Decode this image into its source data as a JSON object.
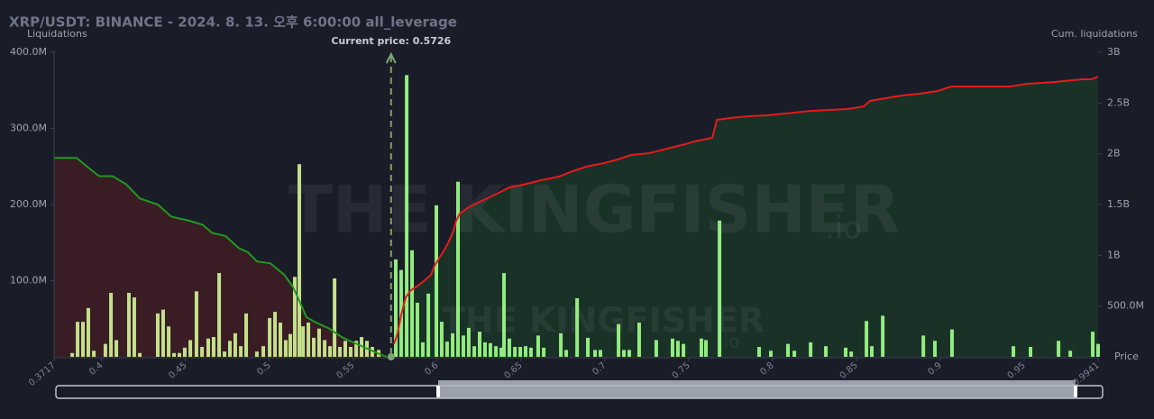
{
  "chart_data": {
    "type": "combo",
    "title": "XRP/USDT: BINANCE - 2024. 8. 13. 오후 6:00:00 all_leverage",
    "y_label": "Liquidations",
    "y2_label": "Cum. liquidations",
    "x_label": "Price",
    "watermark": "THE KINGFISHER",
    "watermark_domain": ".io",
    "current_price": {
      "value": 0.5726,
      "label": "Current price: 0.5726"
    },
    "xlim": [
      0.3717,
      0.9941
    ],
    "xticks": [
      0.3717,
      0.4,
      0.45,
      0.5,
      0.55,
      0.6,
      0.65,
      0.7,
      0.75,
      0.8,
      0.85,
      0.9,
      0.95,
      0.9941
    ],
    "ylim": [
      0,
      400
    ],
    "yticks": [
      {
        "value": 100,
        "label": "100.0M"
      },
      {
        "value": 200,
        "label": "200.0M"
      },
      {
        "value": 300,
        "label": "300.0M"
      },
      {
        "value": 400,
        "label": "400.0M"
      }
    ],
    "y2lim": [
      0,
      3000
    ],
    "y2ticks": [
      {
        "value": 500,
        "label": "500.0M"
      },
      {
        "value": 1000,
        "label": "1B"
      },
      {
        "value": 1500,
        "label": "1.5B"
      },
      {
        "value": 2000,
        "label": "2B"
      },
      {
        "value": 2500,
        "label": "2.5B"
      },
      {
        "value": 3000,
        "label": "3B"
      }
    ],
    "series": [
      {
        "type": "bar",
        "color": "#c3e08a",
        "x": [
          0.3825,
          0.3857,
          0.3889,
          0.3921,
          0.3954,
          0.4023,
          0.4056,
          0.4088,
          0.4163,
          0.4195,
          0.4228,
          0.4335,
          0.4367,
          0.44,
          0.4432,
          0.4464,
          0.4496,
          0.4529,
          0.4566,
          0.4599,
          0.4636,
          0.4668,
          0.4701,
          0.4733,
          0.4765,
          0.4797,
          0.483,
          0.4862,
          0.4926,
          0.4964,
          0.5002,
          0.5034,
          0.5066,
          0.5098,
          0.5125,
          0.5152,
          0.5179,
          0.5201,
          0.5233,
          0.5265,
          0.5297,
          0.533,
          0.5362,
          0.5389,
          0.5421,
          0.5453,
          0.5485,
          0.5518,
          0.555,
          0.5582,
          0.5614,
          0.5652
        ],
        "values": [
          5,
          46,
          46,
          64,
          8,
          17,
          84,
          22,
          84,
          78,
          5,
          57,
          62,
          40,
          5,
          5,
          12,
          22,
          86,
          13,
          24,
          26,
          110,
          7,
          21,
          31,
          14,
          57,
          7,
          14,
          51,
          59,
          45,
          22,
          30,
          105,
          253,
          40,
          45,
          25,
          37,
          22,
          14,
          103,
          13,
          21,
          13,
          21,
          26,
          21,
          13,
          9
        ]
      },
      {
        "type": "bar",
        "color": "#93ec7f",
        "x": [
          0.5754,
          0.5786,
          0.5819,
          0.5851,
          0.5883,
          0.5915,
          0.5948,
          0.5996,
          0.6028,
          0.606,
          0.6093,
          0.6125,
          0.6157,
          0.6189,
          0.6222,
          0.6254,
          0.6286,
          0.6318,
          0.6351,
          0.6383,
          0.6399,
          0.6431,
          0.6464,
          0.6496,
          0.6528,
          0.656,
          0.6603,
          0.6636,
          0.6738,
          0.677,
          0.6835,
          0.6899,
          0.6942,
          0.6974,
          0.7082,
          0.7114,
          0.7146,
          0.7205,
          0.7307,
          0.7404,
          0.7436,
          0.7469,
          0.7576,
          0.7603,
          0.7684,
          0.792,
          0.799,
          0.8092,
          0.813,
          0.8227,
          0.8318,
          0.8436,
          0.8469,
          0.856,
          0.8592,
          0.8657,
          0.8899,
          0.8968,
          0.907,
          0.9436,
          0.9538,
          0.9705,
          0.9775,
          0.9909,
          0.9941
        ],
        "values": [
          128,
          114,
          370,
          140,
          71,
          19,
          83,
          199,
          46,
          20,
          31,
          230,
          28,
          38,
          14,
          33,
          19,
          18,
          14,
          12,
          110,
          24,
          13,
          13,
          14,
          12,
          28,
          12,
          31,
          9,
          77,
          25,
          9,
          9,
          43,
          9,
          9,
          45,
          22,
          24,
          21,
          17,
          24,
          22,
          179,
          13,
          8,
          17,
          8,
          19,
          14,
          12,
          7,
          47,
          14,
          54,
          28,
          21,
          36,
          14,
          13,
          21,
          8,
          33,
          17
        ]
      },
      {
        "type": "line",
        "axis": "y2",
        "color": "#1f9a1f",
        "fill": "#3a1c25",
        "x": [
          0.3717,
          0.3851,
          0.3932,
          0.3986,
          0.4066,
          0.4147,
          0.4228,
          0.4335,
          0.4416,
          0.4523,
          0.4604,
          0.4658,
          0.4738,
          0.4819,
          0.4873,
          0.4926,
          0.5007,
          0.5088,
          0.5141,
          0.5168,
          0.5222,
          0.5276,
          0.5356,
          0.5437,
          0.5544,
          0.5652,
          0.57
        ],
        "values": [
          1960,
          1960,
          1850,
          1780,
          1780,
          1700,
          1560,
          1500,
          1380,
          1340,
          1300,
          1220,
          1190,
          1070,
          1030,
          940,
          920,
          810,
          690,
          590,
          390,
          340,
          280,
          190,
          110,
          30,
          0
        ]
      },
      {
        "type": "line",
        "axis": "y2",
        "color": "#e21c1c",
        "fill": "#1a3128",
        "x": [
          0.5743,
          0.5765,
          0.5786,
          0.5813,
          0.5845,
          0.5878,
          0.5921,
          0.5964,
          0.5985,
          0.6028,
          0.6066,
          0.6098,
          0.6114,
          0.6136,
          0.6189,
          0.6243,
          0.6324,
          0.6378,
          0.6431,
          0.6512,
          0.662,
          0.6727,
          0.6808,
          0.6888,
          0.6996,
          0.7076,
          0.7157,
          0.7265,
          0.7372,
          0.748,
          0.7533,
          0.7641,
          0.7668,
          0.7748,
          0.7856,
          0.7963,
          0.8071,
          0.8232,
          0.8447,
          0.8544,
          0.8581,
          0.877,
          0.8877,
          0.8985,
          0.9065,
          0.9415,
          0.9522,
          0.9683,
          0.9844,
          0.9898,
          0.9941
        ],
        "values": [
          124,
          231,
          408,
          586,
          657,
          692,
          746,
          808,
          897,
          1012,
          1119,
          1243,
          1340,
          1411,
          1473,
          1518,
          1580,
          1624,
          1669,
          1695,
          1740,
          1775,
          1828,
          1873,
          1908,
          1944,
          1988,
          2006,
          2050,
          2095,
          2121,
          2157,
          2334,
          2352,
          2370,
          2379,
          2396,
          2423,
          2441,
          2467,
          2521,
          2574,
          2592,
          2618,
          2663,
          2663,
          2690,
          2707,
          2734,
          2734,
          2760
        ]
      }
    ]
  }
}
